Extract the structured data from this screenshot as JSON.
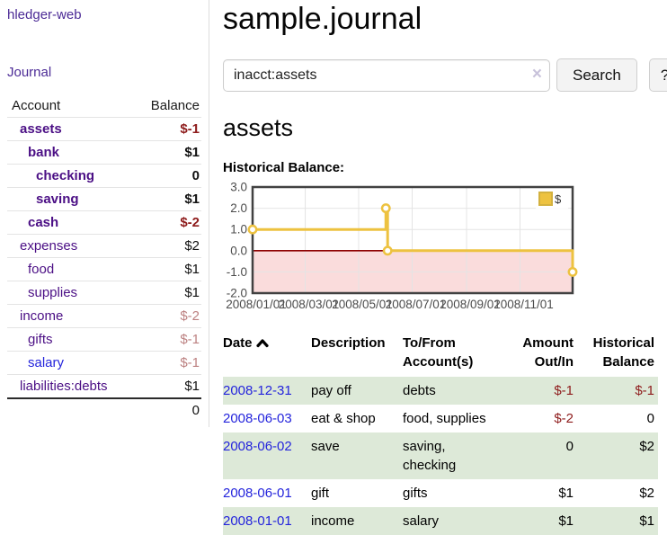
{
  "colors": {
    "link_purple": "#4c2b96",
    "account_purple": "#4b0f85",
    "link_blue": "#2424dc",
    "negative_strong": "#8e1c1c",
    "negative_muted": "#bc8181",
    "row_green": "#dde9d8",
    "chart_series_gold": "#edc240",
    "chart_negative_region": "#fadcdc",
    "chart_zero_line": "#8e0000"
  },
  "sidebar": {
    "app_title": "hledger-web",
    "journal_link": "Journal",
    "accounts_table": {
      "header_account": "Account",
      "header_balance": "Balance",
      "rows": [
        {
          "name": "assets",
          "balance": "$-1",
          "depth": 1,
          "bold": true,
          "balance_style": "neg-strong",
          "link_style": "purple"
        },
        {
          "name": "bank",
          "balance": "$1",
          "depth": 2,
          "bold": true,
          "balance_style": "normal",
          "link_style": "purple"
        },
        {
          "name": "checking",
          "balance": "0",
          "depth": 3,
          "bold": true,
          "balance_style": "normal",
          "link_style": "purple"
        },
        {
          "name": "saving",
          "balance": "$1",
          "depth": 3,
          "bold": true,
          "balance_style": "normal",
          "link_style": "purple"
        },
        {
          "name": "cash",
          "balance": "$-2",
          "depth": 2,
          "bold": true,
          "balance_style": "neg-strong",
          "link_style": "purple"
        },
        {
          "name": "expenses",
          "balance": "$2",
          "depth": 1,
          "bold": false,
          "balance_style": "normal",
          "link_style": "purple"
        },
        {
          "name": "food",
          "balance": "$1",
          "depth": 2,
          "bold": false,
          "balance_style": "normal",
          "link_style": "purple"
        },
        {
          "name": "supplies",
          "balance": "$1",
          "depth": 2,
          "bold": false,
          "balance_style": "normal",
          "link_style": "purple"
        },
        {
          "name": "income",
          "balance": "$-2",
          "depth": 1,
          "bold": false,
          "balance_style": "neg-muted",
          "link_style": "purple"
        },
        {
          "name": "gifts",
          "balance": "$-1",
          "depth": 2,
          "bold": false,
          "balance_style": "neg-muted",
          "link_style": "purple"
        },
        {
          "name": "salary",
          "balance": "$-1",
          "depth": 2,
          "bold": false,
          "balance_style": "neg-muted",
          "link_style": "blue"
        },
        {
          "name": "liabilities:debts",
          "balance": "$1",
          "depth": 1,
          "bold": false,
          "balance_style": "normal",
          "link_style": "purple"
        }
      ],
      "total": "0"
    }
  },
  "main": {
    "title": "sample.journal",
    "search": {
      "value": "inacct:assets",
      "clear_icon": "×",
      "search_button": "Search",
      "help_button": "?"
    },
    "account_heading": "assets",
    "chart_label": "Historical Balance:"
  },
  "chart_data": {
    "type": "line",
    "subtype": "step-line-with-markers",
    "title": "Historical Balance",
    "legend_position": "top-right",
    "grid": true,
    "ylim": [
      -2.0,
      3.0
    ],
    "y_ticks": [
      "3.0",
      "2.0",
      "1.0",
      "0.0",
      "-1.0",
      "-2.0"
    ],
    "y_tick_values": [
      3,
      2,
      1,
      0,
      -1,
      -2
    ],
    "x_ticks": [
      {
        "label": "2008/01/01",
        "day": 0
      },
      {
        "label": "2008/03/01",
        "day": 60
      },
      {
        "label": "2008/05/01",
        "day": 121
      },
      {
        "label": "2008/07/01",
        "day": 182
      },
      {
        "label": "2008/09/01",
        "day": 244
      },
      {
        "label": "2008/11/01",
        "day": 305
      }
    ],
    "xlim_days": [
      0,
      365
    ],
    "negative_region": {
      "from": 0,
      "to": -2
    },
    "series": [
      {
        "name": "$",
        "color": "#edc240",
        "points": [
          {
            "date": "2008-01-01",
            "day": 0,
            "value": 1
          },
          {
            "date": "2008-06-01",
            "day": 152,
            "value": 2
          },
          {
            "date": "2008-06-03",
            "day": 154,
            "value": 0
          },
          {
            "date": "2008-12-31",
            "day": 365,
            "value": -1
          }
        ]
      }
    ]
  },
  "register_table": {
    "headers": {
      "date": "Date",
      "description": "Description",
      "accounts": "To/From Account(s)",
      "amount": "Amount Out/In",
      "balance": "Historical Balance"
    },
    "sort_icon": "chevron-up",
    "rows": [
      {
        "date": "2008-12-31",
        "description": "pay off",
        "accounts": "debts",
        "amount": "$-1",
        "balance": "$-1",
        "amount_style": "neg-strong",
        "balance_style": "neg-strong"
      },
      {
        "date": "2008-06-03",
        "description": "eat & shop",
        "accounts": "food, supplies",
        "amount": "$-2",
        "balance": "0",
        "amount_style": "neg-strong",
        "balance_style": "normal"
      },
      {
        "date": "2008-06-02",
        "description": "save",
        "accounts": "saving, checking",
        "amount": "0",
        "balance": "$2",
        "amount_style": "normal",
        "balance_style": "normal"
      },
      {
        "date": "2008-06-01",
        "description": "gift",
        "accounts": "gifts",
        "amount": "$1",
        "balance": "$2",
        "amount_style": "normal",
        "balance_style": "normal"
      },
      {
        "date": "2008-01-01",
        "description": "income",
        "accounts": "salary",
        "amount": "$1",
        "balance": "$1",
        "amount_style": "normal",
        "balance_style": "normal"
      }
    ]
  }
}
